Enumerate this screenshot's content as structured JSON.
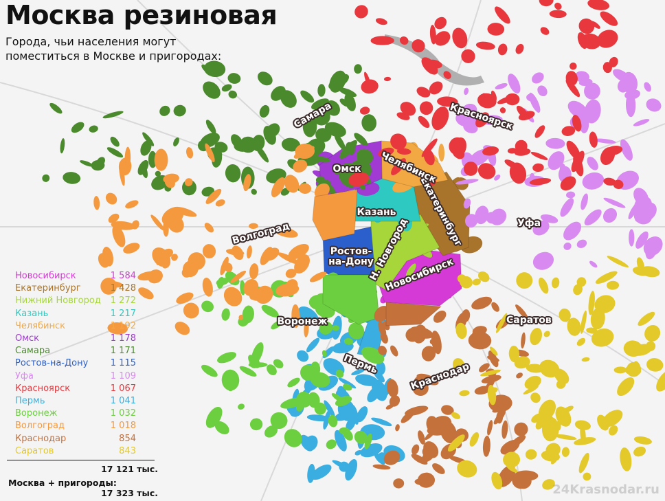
{
  "header": {
    "title": "Москва резиновая",
    "subtitle": "Города, чьи населения могут поместиться в Москве и пригородах:"
  },
  "legend": {
    "rows": [
      {
        "name": "Новосибирск",
        "value": "1 584",
        "color": "#d63ad6",
        "map_label": "Новосибирск"
      },
      {
        "name": "Екатеринбург",
        "value": "1 428",
        "color": "#a8742c",
        "map_label": "Екатеринбург"
      },
      {
        "name": "Нижний Новгород",
        "value": "1 272",
        "color": "#a6d63a",
        "map_label": "Н. Новгород"
      },
      {
        "name": "Казань",
        "value": "1 217",
        "color": "#2ec9c0",
        "map_label": "Казань"
      },
      {
        "name": "Челябинск",
        "value": "1 192",
        "color": "#f2a943",
        "map_label": "Челябинск"
      },
      {
        "name": "Омск",
        "value": "1 178",
        "color": "#a03ad2",
        "map_label": "Омск"
      },
      {
        "name": "Самара",
        "value": "1 171",
        "color": "#4b8a2c",
        "map_label": "Самара"
      },
      {
        "name": "Ростов-на-Дону",
        "value": "1 115",
        "color": "#2a5fcc",
        "map_label": "Ростов-на-Дону"
      },
      {
        "name": "Уфа",
        "value": "1 109",
        "color": "#d98af0",
        "map_label": "Уфа"
      },
      {
        "name": "Красноярск",
        "value": "1 067",
        "color": "#e8383e",
        "map_label": "Красноярск"
      },
      {
        "name": "Пермь",
        "value": "1 041",
        "color": "#3aaee0",
        "map_label": "Пермь"
      },
      {
        "name": "Воронеж",
        "value": "1 032",
        "color": "#6ccf3f",
        "map_label": "Воронеж"
      },
      {
        "name": "Волгоград",
        "value": "1 018",
        "color": "#f5993f",
        "map_label": "Волгоград"
      },
      {
        "name": "Краснодар",
        "value": "854",
        "color": "#c5713c",
        "map_label": "Краснодар"
      },
      {
        "name": "Саратов",
        "value": "843",
        "color": "#e3c92a",
        "map_label": "Саратов"
      }
    ],
    "total": "17 121 тыс.",
    "moscow_label": "Москва + пригороды:",
    "moscow_total": "17 323 тыс."
  },
  "watermark": "24Krasnodar.ru"
}
